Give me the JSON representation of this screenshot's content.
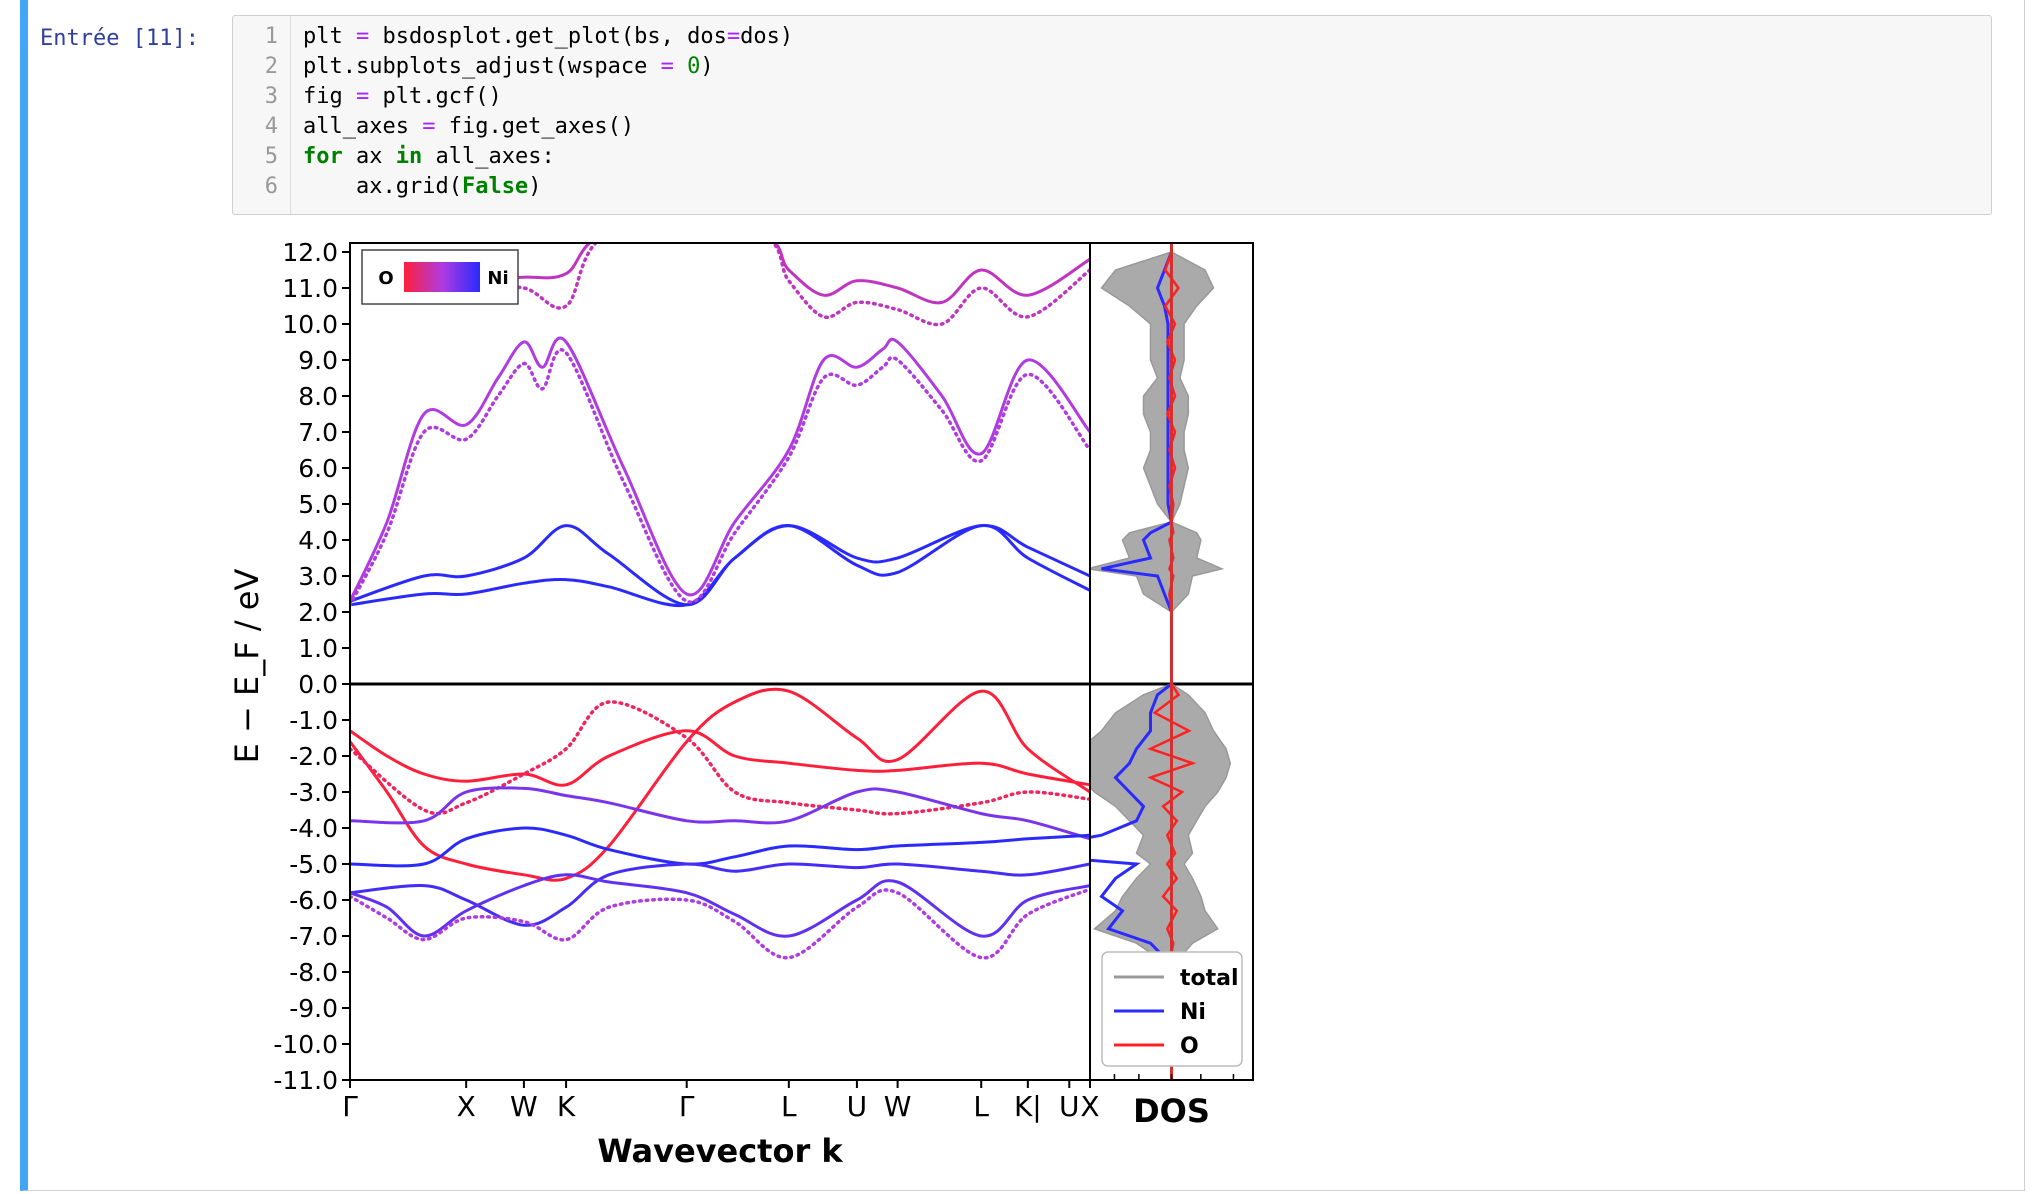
{
  "prompt": "Entrée [11]:",
  "code": {
    "line_numbers": [
      "1",
      "2",
      "3",
      "4",
      "5",
      "6"
    ],
    "lines": [
      [
        {
          "t": "plt "
        },
        {
          "t": "=",
          "c": "op"
        },
        {
          "t": " bsdosplot.get_plot(bs, dos"
        },
        {
          "t": "=",
          "c": "op"
        },
        {
          "t": "dos)"
        }
      ],
      [
        {
          "t": "plt.subplots_adjust(wspace "
        },
        {
          "t": "=",
          "c": "op"
        },
        {
          "t": " "
        },
        {
          "t": "0",
          "c": "num"
        },
        {
          "t": ")"
        }
      ],
      [
        {
          "t": "fig "
        },
        {
          "t": "=",
          "c": "op"
        },
        {
          "t": " plt.gcf()"
        }
      ],
      [
        {
          "t": "all_axes "
        },
        {
          "t": "=",
          "c": "op"
        },
        {
          "t": " fig.get_axes()"
        }
      ],
      [
        {
          "t": "for",
          "c": "kw"
        },
        {
          "t": " ax "
        },
        {
          "t": "in",
          "c": "kw"
        },
        {
          "t": " all_axes:"
        }
      ],
      [
        {
          "t": "    ax.grid("
        },
        {
          "t": "False",
          "c": "kw"
        },
        {
          "t": ")"
        }
      ]
    ]
  },
  "chart_data": [
    {
      "type": "line",
      "panel": "band structure",
      "ylabel": "E − E_F / eV",
      "xlabel": "Wavevector k",
      "ylim": [
        -11.0,
        12.0
      ],
      "yticks": [
        "12.0",
        "11.0",
        "10.0",
        "9.0",
        "8.0",
        "7.0",
        "6.0",
        "5.0",
        "4.0",
        "3.0",
        "2.0",
        "1.0",
        "0.0",
        "-1.0",
        "-2.0",
        "-3.0",
        "-4.0",
        "-5.0",
        "-6.0",
        "-7.0",
        "-8.0",
        "-9.0",
        "-10.0",
        "-11.0"
      ],
      "kpoints": [
        {
          "label": "Γ",
          "k": 0
        },
        {
          "label": "X",
          "k": 0.157
        },
        {
          "label": "W",
          "k": 0.235
        },
        {
          "label": "K",
          "k": 0.292
        },
        {
          "label": "Γ",
          "k": 0.455
        },
        {
          "label": "L",
          "k": 0.593
        },
        {
          "label": "U",
          "k": 0.685
        },
        {
          "label": "W",
          "k": 0.74
        },
        {
          "label": "L",
          "k": 0.853
        },
        {
          "label": "K|",
          "k": 0.916
        },
        {
          "label": "U",
          "k": 0.972
        },
        {
          "label": "X",
          "k": 1.0
        }
      ],
      "colorbar_labels": [
        "O",
        "Ni"
      ],
      "colors": {
        "O": "#ff1f3b",
        "Ni": "#2a2aff",
        "mid": "#b03be0"
      },
      "fermi_level": 0.0,
      "bands": [
        {
          "style": "solid",
          "o_fraction": 0.0,
          "k": [
            0,
            0.1,
            0.157,
            0.235,
            0.292,
            0.35,
            0.455,
            0.52,
            0.593,
            0.685,
            0.74,
            0.853,
            0.916,
            1.0
          ],
          "E": [
            2.2,
            2.5,
            2.5,
            2.8,
            2.9,
            2.7,
            2.2,
            3.5,
            4.4,
            3.3,
            3.1,
            4.4,
            3.5,
            2.6
          ]
        },
        {
          "style": "solid",
          "o_fraction": 0.0,
          "k": [
            0,
            0.1,
            0.157,
            0.235,
            0.292,
            0.35,
            0.455,
            0.52,
            0.593,
            0.685,
            0.74,
            0.853,
            0.916,
            1.0
          ],
          "E": [
            2.3,
            3.0,
            3.0,
            3.5,
            4.4,
            3.6,
            2.2,
            3.5,
            4.4,
            3.5,
            3.5,
            4.4,
            3.8,
            3.0
          ]
        },
        {
          "style": "solid",
          "o_fraction": 0.5,
          "k": [
            0,
            0.05,
            0.1,
            0.157,
            0.2,
            0.235,
            0.26,
            0.292,
            0.37,
            0.455,
            0.52,
            0.593,
            0.64,
            0.685,
            0.72,
            0.74,
            0.8,
            0.853,
            0.916,
            1.0
          ],
          "E": [
            2.3,
            4.5,
            7.5,
            7.2,
            8.5,
            9.5,
            8.8,
            9.5,
            6.0,
            2.5,
            4.5,
            6.5,
            9.0,
            8.8,
            9.3,
            9.5,
            8.0,
            6.4,
            9.0,
            7.0
          ]
        },
        {
          "style": "dotted",
          "o_fraction": 0.5,
          "k": [
            0,
            0.05,
            0.1,
            0.157,
            0.2,
            0.235,
            0.26,
            0.292,
            0.37,
            0.455,
            0.52,
            0.593,
            0.64,
            0.685,
            0.72,
            0.74,
            0.8,
            0.853,
            0.916,
            1.0
          ],
          "E": [
            2.2,
            4.2,
            7.0,
            6.8,
            8.0,
            8.9,
            8.2,
            9.2,
            5.6,
            2.3,
            4.2,
            6.3,
            8.5,
            8.3,
            8.8,
            9.0,
            7.6,
            6.2,
            8.6,
            6.5
          ]
        },
        {
          "style": "solid",
          "o_fraction": 0.6,
          "k": [
            0.157,
            0.235,
            0.292,
            0.35,
            0.55,
            0.593,
            0.64,
            0.685,
            0.74,
            0.8,
            0.853,
            0.916,
            1.0
          ],
          "E": [
            11.3,
            11.3,
            11.4,
            12.5,
            12.5,
            11.5,
            10.8,
            11.2,
            11.0,
            10.6,
            11.5,
            10.8,
            11.8
          ]
        },
        {
          "style": "dotted",
          "o_fraction": 0.6,
          "k": [
            0.157,
            0.235,
            0.292,
            0.35,
            0.55,
            0.593,
            0.64,
            0.685,
            0.74,
            0.8,
            0.853,
            0.916,
            1.0
          ],
          "E": [
            11.0,
            11.0,
            10.5,
            12.5,
            12.5,
            11.2,
            10.2,
            10.6,
            10.4,
            10.0,
            11.0,
            10.2,
            11.5
          ]
        },
        {
          "style": "solid",
          "o_fraction": 1.0,
          "k": [
            0,
            0.05,
            0.1,
            0.157,
            0.235,
            0.292,
            0.35,
            0.455,
            0.52,
            0.593,
            0.685,
            0.74,
            0.853,
            0.916,
            1.0
          ],
          "E": [
            -1.3,
            -2.0,
            -2.5,
            -2.7,
            -2.5,
            -2.8,
            -2.0,
            -1.3,
            -2.0,
            -2.2,
            -2.4,
            -2.4,
            -2.2,
            -2.5,
            -2.8
          ]
        },
        {
          "style": "solid",
          "o_fraction": 1.0,
          "k": [
            0,
            0.05,
            0.1,
            0.157,
            0.235,
            0.292,
            0.35,
            0.455,
            0.52,
            0.593,
            0.685,
            0.74,
            0.853,
            0.916,
            1.0
          ],
          "E": [
            -1.6,
            -3.0,
            -4.5,
            -5.0,
            -5.3,
            -5.4,
            -4.5,
            -1.6,
            -0.5,
            -0.2,
            -1.5,
            -2.1,
            -0.2,
            -1.8,
            -3.0
          ]
        },
        {
          "style": "dotted",
          "o_fraction": 0.9,
          "k": [
            0,
            0.1,
            0.157,
            0.235,
            0.292,
            0.35,
            0.455,
            0.52,
            0.593,
            0.685,
            0.74,
            0.853,
            0.916,
            1.0
          ],
          "E": [
            -1.8,
            -3.5,
            -3.3,
            -2.5,
            -1.8,
            -0.5,
            -1.5,
            -3.0,
            -3.3,
            -3.5,
            -3.6,
            -3.3,
            -3.0,
            -3.2
          ]
        },
        {
          "style": "solid",
          "o_fraction": 0.3,
          "k": [
            0,
            0.1,
            0.157,
            0.235,
            0.292,
            0.35,
            0.455,
            0.52,
            0.593,
            0.685,
            0.74,
            0.853,
            0.916,
            1.0
          ],
          "E": [
            -3.8,
            -3.8,
            -3.0,
            -2.9,
            -3.1,
            -3.3,
            -3.8,
            -3.8,
            -3.8,
            -3.0,
            -3.0,
            -3.6,
            -3.8,
            -4.3
          ]
        },
        {
          "style": "solid",
          "o_fraction": 0.0,
          "k": [
            0,
            0.1,
            0.157,
            0.235,
            0.292,
            0.35,
            0.455,
            0.52,
            0.593,
            0.685,
            0.74,
            0.853,
            0.916,
            1.0
          ],
          "E": [
            -5.0,
            -5.0,
            -4.3,
            -4.0,
            -4.2,
            -4.6,
            -5.0,
            -4.8,
            -4.5,
            -4.6,
            -4.5,
            -4.4,
            -4.3,
            -4.2
          ]
        },
        {
          "style": "solid",
          "o_fraction": 0.1,
          "k": [
            0,
            0.1,
            0.157,
            0.235,
            0.292,
            0.35,
            0.455,
            0.52,
            0.593,
            0.685,
            0.74,
            0.853,
            0.916,
            1.0
          ],
          "E": [
            -5.8,
            -5.6,
            -6.0,
            -6.7,
            -6.2,
            -5.3,
            -5.0,
            -5.2,
            -5.0,
            -5.1,
            -5.0,
            -5.2,
            -5.3,
            -5.0
          ]
        },
        {
          "style": "solid",
          "o_fraction": 0.2,
          "k": [
            0,
            0.05,
            0.1,
            0.157,
            0.235,
            0.292,
            0.35,
            0.455,
            0.52,
            0.593,
            0.685,
            0.74,
            0.853,
            0.916,
            1.0
          ],
          "E": [
            -5.8,
            -6.2,
            -7.0,
            -6.3,
            -5.6,
            -5.3,
            -5.5,
            -5.8,
            -6.4,
            -7.0,
            -6.0,
            -5.5,
            -7.0,
            -6.0,
            -5.6
          ]
        },
        {
          "style": "dotted",
          "o_fraction": 0.5,
          "k": [
            0,
            0.05,
            0.1,
            0.157,
            0.235,
            0.292,
            0.35,
            0.455,
            0.52,
            0.593,
            0.685,
            0.74,
            0.853,
            0.916,
            1.0
          ],
          "E": [
            -5.9,
            -6.5,
            -7.1,
            -6.5,
            -6.6,
            -7.1,
            -6.2,
            -6.0,
            -6.6,
            -7.6,
            -6.2,
            -5.8,
            -7.6,
            -6.4,
            -5.7
          ]
        }
      ]
    },
    {
      "type": "area",
      "panel": "DOS",
      "xlabel": "DOS",
      "legend": [
        "total",
        "Ni",
        "O"
      ],
      "legend_position": "bottom-left",
      "colors": {
        "total": "#999999",
        "Ni": "#2a2aff",
        "O": "#ff2020"
      },
      "energy": [
        12.0,
        11.5,
        11.0,
        10.5,
        10.0,
        9.5,
        9.0,
        8.5,
        8.0,
        7.5,
        7.0,
        6.5,
        6.0,
        5.5,
        5.0,
        4.5,
        4.2,
        4.0,
        3.5,
        3.2,
        3.0,
        2.5,
        2.0,
        0.0,
        -0.3,
        -0.8,
        -1.3,
        -1.8,
        -2.2,
        -2.6,
        -3.0,
        -3.4,
        -3.8,
        -4.2,
        -4.7,
        -5.0,
        -5.4,
        -5.9,
        -6.3,
        -6.8,
        -7.2,
        -7.6,
        -8.0,
        -11.0
      ],
      "total": [
        0,
        0.8,
        1.0,
        0.6,
        0.3,
        0.3,
        0.3,
        0.2,
        0.4,
        0.4,
        0.3,
        0.3,
        0.4,
        0.3,
        0.2,
        0,
        0.6,
        0.7,
        0.6,
        1.2,
        0.5,
        0.4,
        0,
        0,
        0.4,
        0.8,
        1.0,
        1.3,
        1.4,
        1.3,
        1.1,
        0.8,
        0.6,
        0.4,
        0.5,
        0.3,
        0.5,
        0.7,
        0.8,
        1.1,
        0.5,
        0.2,
        0,
        0
      ],
      "Ni": [
        0,
        0.1,
        0.2,
        0.1,
        0.05,
        0.05,
        0.05,
        0.05,
        0.05,
        0.05,
        0.05,
        0.05,
        0.05,
        0.05,
        0.05,
        0,
        0.3,
        0.4,
        0.3,
        1.0,
        0.2,
        0.1,
        0,
        0,
        0.2,
        0.3,
        0.3,
        0.5,
        0.6,
        0.8,
        0.6,
        0.4,
        0.5,
        1.0,
        2.4,
        0.5,
        0.8,
        1.0,
        0.7,
        0.9,
        0.3,
        0.1,
        0,
        0
      ],
      "O": [
        0,
        0.15,
        0.2,
        0.15,
        0.1,
        0.1,
        0.1,
        0.05,
        0.1,
        0.1,
        0.1,
        0.05,
        0.1,
        0.05,
        0.05,
        0,
        0.05,
        0.05,
        0.05,
        0.05,
        0.05,
        0.05,
        0,
        0,
        0.2,
        0.4,
        0.5,
        0.5,
        0.6,
        0.5,
        0.3,
        0.2,
        0.15,
        0.1,
        0.1,
        0.1,
        0.15,
        0.2,
        0.15,
        0.1,
        0.05,
        0.02,
        0,
        0
      ]
    }
  ]
}
